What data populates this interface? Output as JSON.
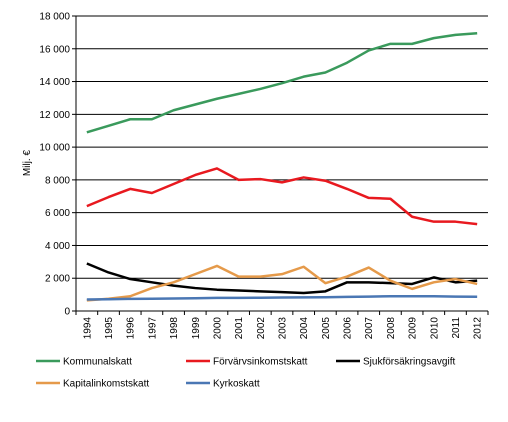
{
  "chart_data": {
    "type": "line",
    "title": "",
    "xlabel": "",
    "ylabel": "Milj. €",
    "ylim": [
      0,
      18000
    ],
    "yticks": [
      "0",
      "2 000",
      "4 000",
      "6 000",
      "8 000",
      "10 000",
      "12 000",
      "14 000",
      "16 000",
      "18 000"
    ],
    "ytick_values": [
      0,
      2000,
      4000,
      6000,
      8000,
      10000,
      12000,
      14000,
      16000,
      18000
    ],
    "x": [
      "1994",
      "1995",
      "1996",
      "1997",
      "1998",
      "1999",
      "2000",
      "2001",
      "2002",
      "2003",
      "2004",
      "2005",
      "2006",
      "2007",
      "2008",
      "2009",
      "2010",
      "2011",
      "2012"
    ],
    "grid": "horizontal",
    "legend_position": "bottom",
    "series": [
      {
        "name": "Kommunalskatt",
        "color": "#3a9a5c",
        "values": [
          10900,
          11300,
          11700,
          11700,
          12250,
          12600,
          12950,
          13250,
          13550,
          13900,
          14300,
          14550,
          15150,
          15900,
          16300,
          16300,
          16650,
          16850,
          16950
        ]
      },
      {
        "name": "Förvärvsinkomstskatt",
        "color": "#e8191f",
        "values": [
          6400,
          6950,
          7450,
          7200,
          7750,
          8300,
          8700,
          8000,
          8050,
          7850,
          8150,
          7950,
          7450,
          6900,
          6850,
          5750,
          5450,
          5450,
          5300
        ]
      },
      {
        "name": "Sjukförsäkringsavgift",
        "color": "#000000",
        "values": [
          2900,
          2350,
          1950,
          1750,
          1550,
          1400,
          1300,
          1250,
          1200,
          1150,
          1100,
          1200,
          1750,
          1750,
          1700,
          1650,
          2050,
          1750,
          1850
        ]
      },
      {
        "name": "Kapitalinkomstskatt",
        "color": "#e59a4a",
        "values": [
          650,
          750,
          900,
          1400,
          1750,
          2250,
          2750,
          2100,
          2100,
          2250,
          2700,
          1700,
          2100,
          2650,
          1850,
          1350,
          1750,
          1950,
          1650
        ]
      },
      {
        "name": "Kyrkoskatt",
        "color": "#4a77b4",
        "values": [
          700,
          720,
          740,
          750,
          760,
          780,
          800,
          800,
          810,
          820,
          830,
          840,
          860,
          880,
          900,
          900,
          900,
          880,
          870
        ]
      }
    ]
  }
}
